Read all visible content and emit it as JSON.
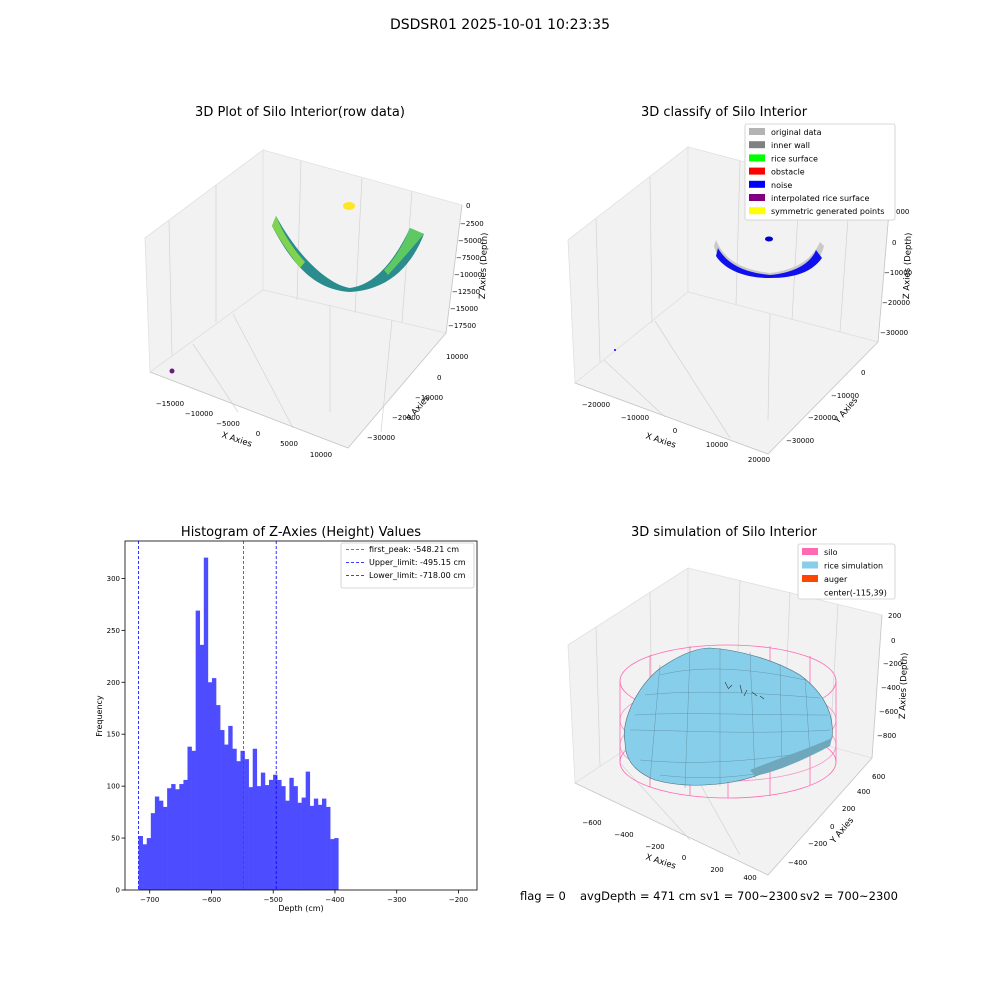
{
  "figure": {
    "suptitle": "DSDSR01 2025-10-01 10:23:35",
    "footer": {
      "flag": "flag = 0",
      "avg_depth": "avgDepth = 471 cm",
      "sv1": "sv1 = 700~2300",
      "sv2": "sv2 = 700~2300"
    }
  },
  "colors": {
    "hist_bar": "#4d4dff",
    "first_peak_line": "#ff0000",
    "limit_lines": "#0000ff",
    "original_data": "#b3b3b3",
    "inner_wall": "#808080",
    "rice_surface": "#00ff00",
    "obstacle": "#ff0000",
    "noise": "#0000ff",
    "interpolated_rice_surface": "#800080",
    "symmetric_generated_points": "#ffff00",
    "silo": "#ff69b4",
    "rice_simulation": "#87ceeb",
    "auger": "#ff4500"
  },
  "panels": {
    "raw": {
      "title": "3D Plot of Silo Interior(row data)",
      "xlabel": "X Axies",
      "ylabel": "Y Axies",
      "zlabel": "Z Axies (Depth)",
      "x_ticks": [
        "−15000",
        "−10000",
        "−5000",
        "0",
        "5000",
        "10000"
      ],
      "y_ticks": [
        "10000",
        "0",
        "−10000",
        "−20000",
        "−30000"
      ],
      "z_ticks": [
        "0",
        "−2500",
        "−5000",
        "−7500",
        "−10000",
        "−12500",
        "−15000",
        "−17500"
      ]
    },
    "classify": {
      "title": "3D classify of Silo Interior",
      "xlabel": "X Axies",
      "ylabel": "Y Axies",
      "zlabel": "Z Axies (Depth)",
      "x_ticks": [
        "−20000",
        "−10000",
        "0",
        "10000",
        "20000"
      ],
      "y_ticks": [
        "0",
        "−10000",
        "−20000",
        "−30000"
      ],
      "z_ticks": [
        "000",
        "0",
        "−10000",
        "−20000",
        "−30000"
      ],
      "legend": [
        {
          "label": "original data",
          "color": "#b3b3b3"
        },
        {
          "label": "inner wall",
          "color": "#808080"
        },
        {
          "label": "rice surface",
          "color": "#00ff00"
        },
        {
          "label": "obstacle",
          "color": "#ff0000"
        },
        {
          "label": "noise",
          "color": "#0000ff"
        },
        {
          "label": "interpolated rice surface",
          "color": "#800080"
        },
        {
          "label": "symmetric generated points",
          "color": "#ffff00"
        }
      ]
    },
    "simulation": {
      "title": "3D simulation of Silo Interior",
      "xlabel": "X Axies",
      "ylabel": "Y Axies",
      "zlabel": "Z Axies (Depth)",
      "x_ticks": [
        "−600",
        "−400",
        "−200",
        "0",
        "200",
        "400"
      ],
      "y_ticks": [
        "600",
        "400",
        "200",
        "0",
        "−200",
        "−400"
      ],
      "z_ticks": [
        "200",
        "0",
        "−200",
        "−400",
        "−600",
        "−800"
      ],
      "legend": [
        {
          "label": "silo",
          "color": "#ff69b4"
        },
        {
          "label": "rice simulation",
          "color": "#87ceeb"
        },
        {
          "label": "auger",
          "color": "#ff4500"
        },
        {
          "label": "center(-115,39)",
          "color": ""
        }
      ]
    }
  },
  "chart_data": [
    {
      "type": "histogram",
      "title": "Histogram of Z-Axies (Height) Values",
      "xlabel": "Depth (cm)",
      "ylabel": "Frequency",
      "xlim": [
        -740,
        -170
      ],
      "ylim": [
        0,
        336
      ],
      "x_ticks": [
        -700,
        -600,
        -500,
        -400,
        -300,
        -200
      ],
      "y_ticks": [
        0,
        50,
        100,
        150,
        200,
        250,
        300
      ],
      "bin_start": -718.0,
      "bin_width": 6.6,
      "values": [
        52,
        44,
        50,
        74,
        90,
        86,
        80,
        98,
        102,
        97,
        102,
        106,
        138,
        134,
        269,
        236,
        320,
        200,
        204,
        178,
        154,
        140,
        158,
        136,
        124,
        134,
        126,
        99,
        136,
        100,
        113,
        101,
        106,
        111,
        106,
        100,
        86,
        108,
        100,
        84,
        89,
        114,
        81,
        88,
        82,
        88,
        80,
        49,
        50
      ],
      "vlines": [
        {
          "label": "first_peak: -548.21 cm",
          "x": -548.21,
          "color": "#ff0000"
        },
        {
          "label": "Upper_limit: -495.15 cm",
          "x": -495.15,
          "color": "#0000ff"
        },
        {
          "label": "Lower_limit: -718.00 cm",
          "x": -718.0,
          "color": "#0000ff"
        }
      ],
      "grid": false,
      "legend_position": "top-right"
    }
  ]
}
